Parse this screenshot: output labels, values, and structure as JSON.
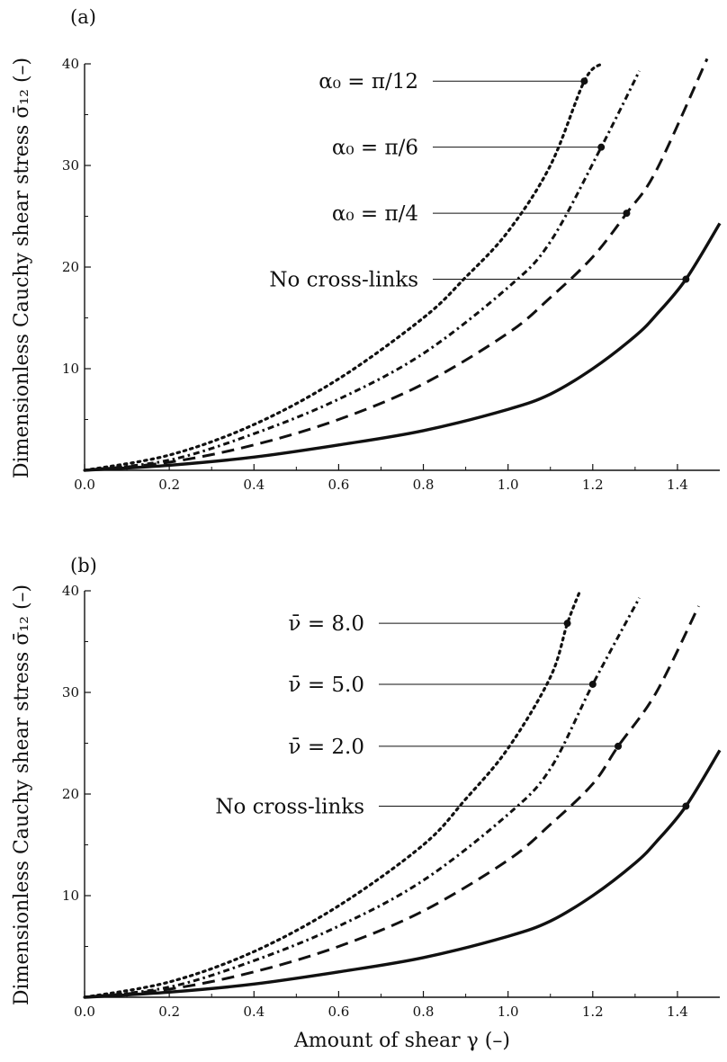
{
  "chart_data": [
    {
      "type": "line",
      "panel_label": "(a)",
      "ylabel": "Dimensionless Cauchy shear stress σ̄₁₂ (–)",
      "xlabel": "",
      "xlim": [
        0,
        1.5
      ],
      "ylim": [
        0,
        40
      ],
      "x_ticks": [
        "0.0",
        "0.2",
        "0.4",
        "0.6",
        "0.8",
        "1.0",
        "1.2",
        "1.4"
      ],
      "y_ticks": [
        "10",
        "20",
        "30",
        "40"
      ],
      "grid": false,
      "legend": "none",
      "series": [
        {
          "name": "No cross-links",
          "style": "solid",
          "x": [
            0,
            0.2,
            0.4,
            0.6,
            0.8,
            1.0,
            1.1,
            1.2,
            1.3,
            1.35,
            1.42,
            1.5
          ],
          "y": [
            0,
            0.5,
            1.3,
            2.5,
            3.9,
            6.0,
            7.5,
            10.0,
            13.2,
            15.3,
            18.8,
            24.3
          ],
          "marker": {
            "x": 1.42,
            "y": 18.8
          }
        },
        {
          "name": "α₀ = π/4",
          "style": "dashed",
          "x": [
            0,
            0.2,
            0.4,
            0.6,
            0.8,
            1.0,
            1.1,
            1.2,
            1.28,
            1.35,
            1.47
          ],
          "y": [
            0,
            0.8,
            2.5,
            5.0,
            8.5,
            13.5,
            17.0,
            21.0,
            25.3,
            29.5,
            40.5
          ],
          "marker": {
            "x": 1.28,
            "y": 25.3
          }
        },
        {
          "name": "α₀ = π/6",
          "style": "dashdot",
          "x": [
            0,
            0.2,
            0.4,
            0.6,
            0.8,
            1.0,
            1.1,
            1.22,
            1.31
          ],
          "y": [
            0,
            1.0,
            3.6,
            7.0,
            11.5,
            18.0,
            22.5,
            31.8,
            39.3
          ],
          "marker": {
            "x": 1.22,
            "y": 31.8
          }
        },
        {
          "name": "α₀ = π/12",
          "style": "dotted",
          "x": [
            0,
            0.2,
            0.4,
            0.6,
            0.8,
            0.9,
            1.0,
            1.1,
            1.18,
            1.22
          ],
          "y": [
            0,
            1.5,
            4.5,
            9.0,
            15.0,
            19.0,
            23.5,
            30.0,
            38.3,
            40.0
          ],
          "marker": {
            "x": 1.18,
            "y": 38.3
          }
        }
      ],
      "annotations": [
        {
          "text": "α₀ = π/12",
          "y": 38.3,
          "x_end": 1.18
        },
        {
          "text": "α₀ = π/6",
          "y": 31.8,
          "x_end": 1.22
        },
        {
          "text": "α₀ = π/4",
          "y": 25.3,
          "x_end": 1.28
        },
        {
          "text": "No cross-links",
          "y": 18.8,
          "x_end": 1.42
        }
      ]
    },
    {
      "type": "line",
      "panel_label": "(b)",
      "ylabel": "Dimensionless Cauchy shear stress σ̄₁₂ (–)",
      "xlabel": "Amount of shear γ (–)",
      "xlim": [
        0,
        1.5
      ],
      "ylim": [
        0,
        40
      ],
      "x_ticks": [
        "0.0",
        "0.2",
        "0.4",
        "0.6",
        "0.8",
        "1.0",
        "1.2",
        "1.4"
      ],
      "y_ticks": [
        "10",
        "20",
        "30",
        "40"
      ],
      "grid": false,
      "legend": "none",
      "series": [
        {
          "name": "No cross-links",
          "style": "solid",
          "x": [
            0,
            0.2,
            0.4,
            0.6,
            0.8,
            1.0,
            1.1,
            1.2,
            1.3,
            1.35,
            1.42,
            1.5
          ],
          "y": [
            0,
            0.5,
            1.3,
            2.5,
            3.9,
            6.0,
            7.5,
            10.0,
            13.2,
            15.3,
            18.8,
            24.3
          ],
          "marker": {
            "x": 1.42,
            "y": 18.8
          }
        },
        {
          "name": "ν̄ = 2.0",
          "style": "dashed",
          "x": [
            0,
            0.2,
            0.4,
            0.6,
            0.8,
            1.0,
            1.1,
            1.2,
            1.26,
            1.35,
            1.45
          ],
          "y": [
            0,
            0.8,
            2.5,
            5.0,
            8.5,
            13.5,
            17.0,
            21.0,
            24.7,
            30.0,
            38.5
          ],
          "marker": {
            "x": 1.26,
            "y": 24.7
          }
        },
        {
          "name": "ν̄ = 5.0",
          "style": "dashdot",
          "x": [
            0,
            0.2,
            0.4,
            0.6,
            0.8,
            1.0,
            1.1,
            1.2,
            1.31
          ],
          "y": [
            0,
            1.0,
            3.6,
            7.0,
            11.5,
            18.0,
            22.5,
            30.8,
            39.3
          ],
          "marker": {
            "x": 1.2,
            "y": 30.8
          }
        },
        {
          "name": "ν̄ = 8.0",
          "style": "dotted",
          "x": [
            0,
            0.2,
            0.4,
            0.6,
            0.8,
            0.9,
            1.0,
            1.1,
            1.14,
            1.17
          ],
          "y": [
            0,
            1.5,
            4.5,
            9.0,
            15.0,
            19.5,
            24.5,
            31.5,
            36.8,
            40.0
          ],
          "marker": {
            "x": 1.14,
            "y": 36.8
          }
        }
      ],
      "annotations": [
        {
          "text": "ν̄ = 8.0",
          "y": 36.8,
          "x_end": 1.14
        },
        {
          "text": "ν̄ = 5.0",
          "y": 30.8,
          "x_end": 1.2
        },
        {
          "text": "ν̄ = 2.0",
          "y": 24.7,
          "x_end": 1.26
        },
        {
          "text": "No cross-links",
          "y": 18.8,
          "x_end": 1.42
        }
      ]
    }
  ]
}
